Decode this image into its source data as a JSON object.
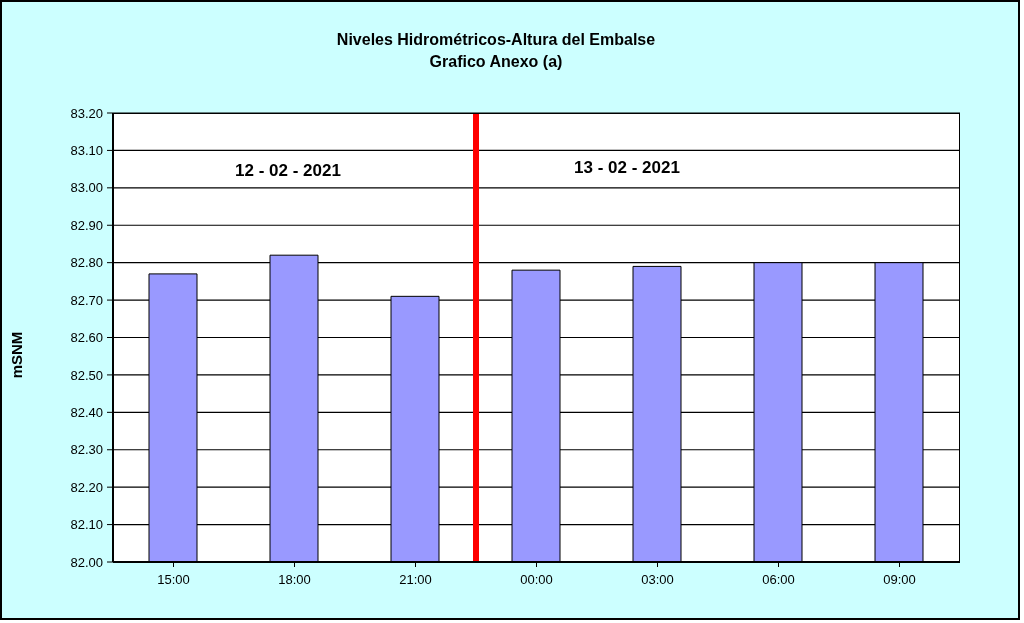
{
  "chart_data": {
    "type": "bar",
    "title": "Niveles Hidrométricos-Altura del Embalse",
    "subtitle": "Grafico Anexo (a)",
    "ylabel": "mSNM",
    "x": [
      "2021-02-12T15:00",
      "2021-02-12T18:00",
      "2021-02-12T21:00",
      "2021-02-13T00:00",
      "2021-02-13T03:00",
      "2021-02-13T06:00",
      "2021-02-13T09:00"
    ],
    "values": [
      82.77,
      82.82,
      82.71,
      82.78,
      82.79,
      82.8,
      82.8
    ],
    "color": "#9999ff",
    "xlim": [
      "2021-02-12T13:30",
      "2021-02-13T10:30"
    ],
    "xticks": [
      {
        "value": "2021-02-12T15:00",
        "label": "15:00"
      },
      {
        "value": "2021-02-12T18:00",
        "label": "18:00"
      },
      {
        "value": "2021-02-12T21:00",
        "label": "21:00"
      },
      {
        "value": "2021-02-13T00:00",
        "label": "00:00"
      },
      {
        "value": "2021-02-13T03:00",
        "label": "03:00"
      },
      {
        "value": "2021-02-13T06:00",
        "label": "06:00"
      },
      {
        "value": "2021-02-13T09:00",
        "label": "09:00"
      }
    ],
    "ylim": [
      82,
      83.2
    ],
    "yticks": [
      {
        "value": 82,
        "label": "82.00"
      },
      {
        "value": 82.1,
        "label": "82.10"
      },
      {
        "value": 82.2,
        "label": "82.20"
      },
      {
        "value": 82.3,
        "label": "82.30"
      },
      {
        "value": 82.4,
        "label": "82.40"
      },
      {
        "value": 82.5,
        "label": "82.50"
      },
      {
        "value": 82.6,
        "label": "82.60"
      },
      {
        "value": 82.7,
        "label": "82.70"
      },
      {
        "value": 82.8,
        "label": "82.80"
      },
      {
        "value": 82.9,
        "label": "82.90"
      },
      {
        "value": 83,
        "label": "83.00"
      },
      {
        "value": 83.1,
        "label": "83.10"
      },
      {
        "value": 83.2,
        "label": "83.20"
      }
    ],
    "grid": "y",
    "ref_lines": [
      {
        "axis": "x",
        "value": "2021-02-12T22:30",
        "color": "#ff0000"
      }
    ],
    "annotations": [
      "12 - 02 - 2021",
      "13 - 02 - 2021"
    ]
  }
}
